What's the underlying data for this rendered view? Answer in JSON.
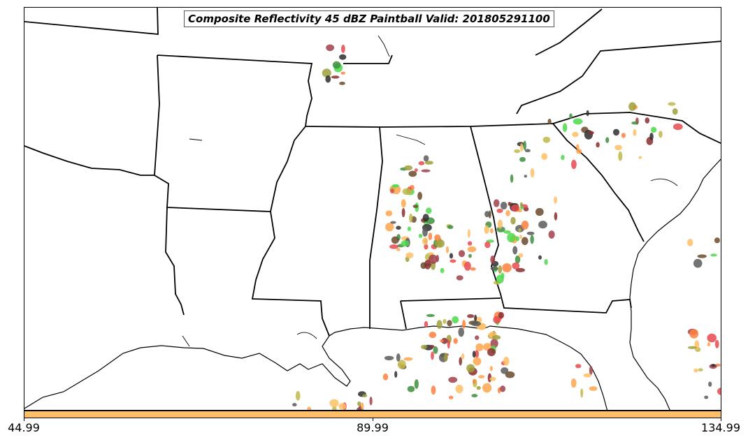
{
  "title": "Composite Reflectivity 45 dBZ Paintball Valid: 201805291100",
  "colorbar": {
    "color": "#ffbf66",
    "ticks": [
      "44.99",
      "89.99",
      "134.99"
    ]
  },
  "chart_data": {
    "type": "map",
    "title": "Composite Reflectivity 45 dBZ Paintball Valid: 201805291100",
    "valid_time": "201805291100",
    "threshold_dbz": 45,
    "colorbar_ticks": [
      44.99,
      89.99,
      134.99
    ],
    "member_colors": [
      "#e8494d",
      "#ffa64d",
      "#ff8040",
      "#8b2d2d",
      "#a0404a",
      "#4cd94c",
      "#3d8f3d",
      "#9f9f3a",
      "#c0b84a",
      "#5a5a5a",
      "#2e2e2e",
      "#6a4a2a",
      "#ffbf66"
    ]
  }
}
